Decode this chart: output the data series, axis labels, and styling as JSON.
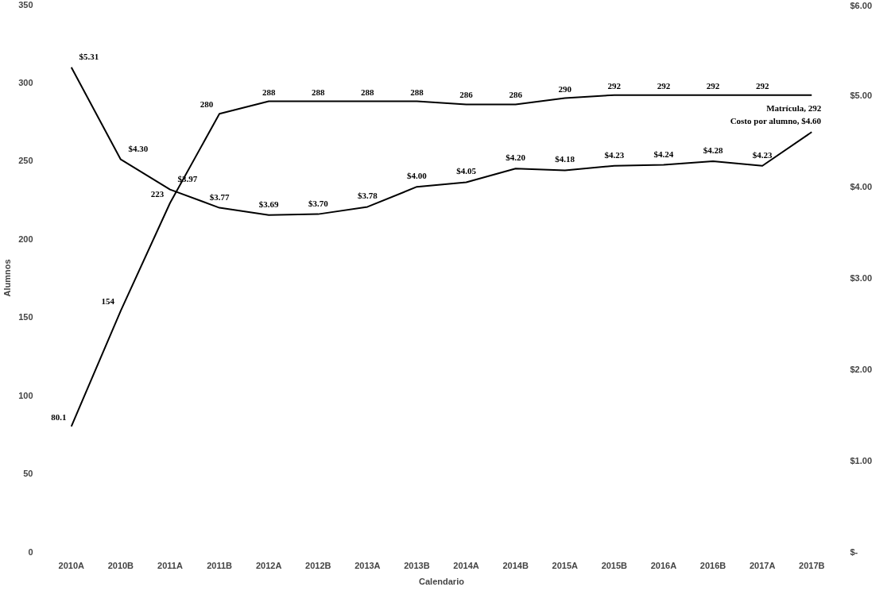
{
  "chart_data": {
    "type": "line",
    "xlabel": "Calendario",
    "ylabel": "Alumnos",
    "categories": [
      "2010A",
      "2010B",
      "2011A",
      "2011B",
      "2012A",
      "2012B",
      "2013A",
      "2013B",
      "2014A",
      "2014B",
      "2015A",
      "2015B",
      "2016A",
      "2016B",
      "2017A",
      "2017B"
    ],
    "series": [
      {
        "color": "#000000",
        "values": [
          80.1,
          154,
          223,
          280,
          288,
          288,
          288,
          288,
          286,
          286,
          290,
          292,
          292,
          292,
          292,
          292
        ],
        "value_labels": [
          "80.1",
          "154",
          "223",
          "280",
          "288",
          "288",
          "288",
          "288",
          "286",
          "286",
          "290",
          "292",
          "292",
          "292",
          "292",
          "Matrícula, 292"
        ]
      },
      {
        "color": "#000000",
        "axis": "y2",
        "values": [
          5.31,
          4.3,
          3.97,
          3.77,
          3.69,
          3.7,
          3.78,
          4.0,
          4.05,
          4.2,
          4.18,
          4.23,
          4.24,
          4.28,
          4.23,
          4.6
        ],
        "value_labels": [
          "$5.31",
          "$4.30",
          "$3.97",
          "$3.77",
          "$3.69",
          "$3.70",
          "$3.78",
          "$4.00",
          "$4.05",
          "$4.20",
          "$4.18",
          "$4.23",
          "$4.24",
          "$4.28",
          "$4.23",
          "Costo por alumno, $4.60"
        ]
      }
    ],
    "ylim": [
      0,
      350
    ],
    "yticks": [
      0,
      50,
      100,
      150,
      200,
      250,
      300,
      350
    ],
    "y2lim": [
      0,
      6
    ],
    "y2ticks": [
      {
        "value": 0,
        "label": "$-"
      },
      {
        "value": 1,
        "label": "$1.00"
      },
      {
        "value": 2,
        "label": "$2.00"
      },
      {
        "value": 3,
        "label": "$3.00"
      },
      {
        "value": 4,
        "label": "$4.00"
      },
      {
        "value": 5,
        "label": "$5.00"
      },
      {
        "value": 6,
        "label": "$6.00"
      }
    ],
    "grid": false,
    "legend": false,
    "marker": "none",
    "line_style": "solid"
  }
}
